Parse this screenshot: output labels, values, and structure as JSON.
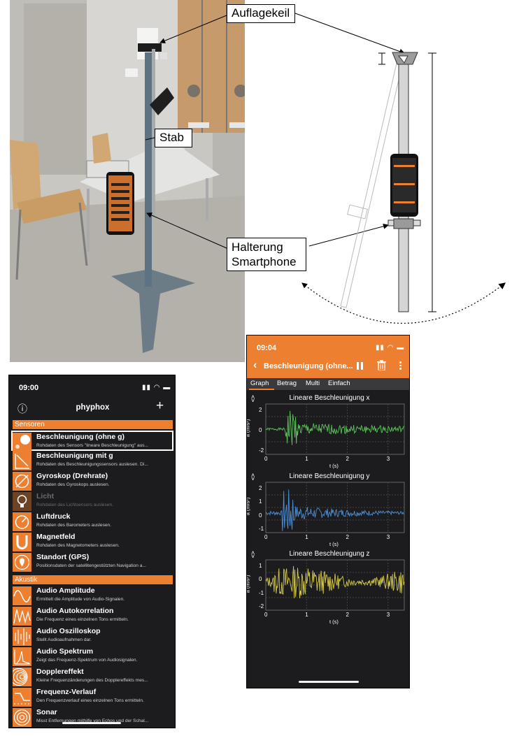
{
  "callouts": {
    "wedge": "Auflagekeil",
    "rod": "Stab",
    "holder_line1": "Halterung",
    "holder_line2": "Smartphone"
  },
  "left_phone": {
    "time": "09:00",
    "title": "phyphox",
    "info_glyph": "ⓘ",
    "add_glyph": "+",
    "sections": [
      {
        "name": "Sensoren",
        "items": [
          {
            "title": "Beschleunigung (ohne g)",
            "desc": "Rohdaten des Sensors \"lineare Beschleunigung\" aus...",
            "icon": "accel-icon"
          },
          {
            "title": "Beschleunigung mit g",
            "desc": "Rohdaten des Beschleunigungssensors auslesen. Di...",
            "icon": "accel-g-icon"
          },
          {
            "title": "Gyroskop (Drehrate)",
            "desc": "Rohdaten des Gyroskops auslesen.",
            "icon": "gyroscope-icon"
          },
          {
            "title": "Licht",
            "desc": "Rohdaten des Lichtsensors auslesen.",
            "icon": "bulb-icon"
          },
          {
            "title": "Luftdruck",
            "desc": "Rohdaten des Barometers auslesen.",
            "icon": "barometer-icon"
          },
          {
            "title": "Magnetfeld",
            "desc": "Rohdaten des Magnetometers auslesen.",
            "icon": "magnet-icon"
          },
          {
            "title": "Standort (GPS)",
            "desc": "Positionsdaten der satellitengestützten Navigation a...",
            "icon": "location-icon"
          }
        ]
      },
      {
        "name": "Akustik",
        "items": [
          {
            "title": "Audio Amplitude",
            "desc": "Ermittelt die Amplitude von Audio-Signalen.",
            "icon": "wave-icon"
          },
          {
            "title": "Audio Autokorrelation",
            "desc": "Die Frequenz eines einzelnen Tons ermitteln.",
            "icon": "autocorrelation-icon"
          },
          {
            "title": "Audio Oszilloskop",
            "desc": "Stellt Audioaufnahmen dar.",
            "icon": "oscilloscope-icon"
          },
          {
            "title": "Audio Spektrum",
            "desc": "Zeigt das Frequenz-Spektrum von Audiosignalen.",
            "icon": "spectrum-icon"
          },
          {
            "title": "Dopplereffekt",
            "desc": "Kleine Frequenzänderungen des Dopplereffekts mes...",
            "icon": "doppler-icon"
          },
          {
            "title": "Frequenz-Verlauf",
            "desc": "Den Frequenzverlauf eines einzelnen Tons ermitteln.",
            "icon": "frequency-history-icon"
          },
          {
            "title": "Sonar",
            "desc": "Misst Entfernungen mithilfe von Echos und der Schal...",
            "icon": "sonar-icon"
          }
        ]
      }
    ]
  },
  "right_phone": {
    "time": "09:04",
    "back_glyph": "‹",
    "title": "Beschleunigung (ohne...",
    "tabs": [
      "Graph",
      "Betrag",
      "Multi",
      "Einfach"
    ],
    "active_tab": "Graph",
    "graphs": [
      {
        "title": "Lineare Beschleunigung x",
        "ylabel": "a (m/s²)",
        "xlabel": "t (s)",
        "color": "#5cc15a",
        "yticks": [
          "2",
          "0",
          "-2"
        ],
        "xticks": [
          "0",
          "1",
          "2",
          "3"
        ],
        "ylim": [
          -3,
          3
        ],
        "xlim": [
          0,
          3.4
        ]
      },
      {
        "title": "Lineare Beschleunigung y",
        "ylabel": "a (m/s²)",
        "xlabel": "t (s)",
        "color": "#4d8fd6",
        "yticks": [
          "2",
          "1",
          "0",
          "-1"
        ],
        "xticks": [
          "0",
          "1",
          "2",
          "3"
        ],
        "ylim": [
          -1.8,
          2.8
        ],
        "xlim": [
          0,
          3.4
        ]
      },
      {
        "title": "Lineare Beschleunigung z",
        "ylabel": "a (m/s²)",
        "xlabel": "t (s)",
        "color": "#d4c94a",
        "yticks": [
          "1",
          "0",
          "-1",
          "-2"
        ],
        "xticks": [
          "0",
          "1",
          "2",
          "3"
        ],
        "ylim": [
          -2.2,
          1.7
        ],
        "xlim": [
          0,
          3.4
        ]
      }
    ]
  },
  "colors": {
    "accent": "#ed7f31",
    "phone_bg": "#1c1c1e"
  }
}
